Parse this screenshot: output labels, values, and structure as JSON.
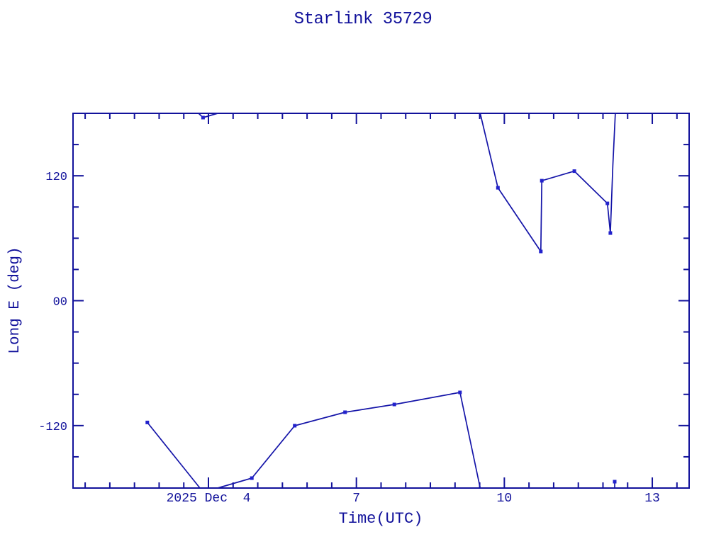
{
  "title": "Starlink 35729",
  "colors": {
    "axis": "#12129b",
    "text": "#12129b",
    "line": "#1414a8",
    "marker": "#2222cc"
  },
  "chart_data": {
    "type": "line",
    "title": "Starlink 35729",
    "xlabel": "Time(UTC)",
    "ylabel": "Long E (deg)",
    "x_axis_unit": "day of December 2025 (UTC)",
    "xlim": [
      1.254,
      13.747
    ],
    "ylim": [
      -180,
      180
    ],
    "grid": false,
    "legend": null,
    "marker_style": "filled-square",
    "x_major_ticks": [
      {
        "value": 4,
        "label": "2025 Dec  4"
      },
      {
        "value": 7,
        "label": "7"
      },
      {
        "value": 10,
        "label": "10"
      },
      {
        "value": 13,
        "label": "13"
      }
    ],
    "x_minor_step": 0.5,
    "y_major_ticks": [
      {
        "value": 120,
        "label": "120"
      },
      {
        "value": 0,
        "label": "00"
      },
      {
        "value": -120,
        "label": "-120"
      }
    ],
    "y_minor_step": 30,
    "points": [
      [
        2.76,
        -117.0
      ],
      [
        3.89,
        175.9
      ],
      [
        4.88,
        -170.5
      ],
      [
        5.75,
        -120.1
      ],
      [
        6.77,
        -107.2
      ],
      [
        7.77,
        -99.7
      ],
      [
        9.1,
        -88.1
      ],
      [
        9.87,
        108.5
      ],
      [
        10.74,
        47.3
      ],
      [
        10.76,
        115.3
      ],
      [
        11.42,
        124.5
      ],
      [
        12.09,
        93.5
      ],
      [
        12.15,
        65.0
      ],
      [
        12.238,
        -173.9
      ]
    ],
    "segments": [
      [
        [
          2.76,
          -117.0
        ],
        [
          3.827,
          -180
        ]
      ],
      [
        [
          3.8,
          180
        ],
        [
          3.89,
          175.9
        ],
        [
          4.187,
          180
        ]
      ],
      [
        [
          4.187,
          -180
        ],
        [
          4.88,
          -170.5
        ],
        [
          5.75,
          -120.1
        ],
        [
          6.77,
          -107.2
        ],
        [
          7.77,
          -99.7
        ],
        [
          9.1,
          -88.1
        ],
        [
          9.51,
          -180
        ]
      ],
      [
        [
          9.51,
          180
        ],
        [
          9.87,
          108.5
        ],
        [
          10.74,
          47.3
        ],
        [
          10.76,
          115.3
        ],
        [
          11.42,
          124.5
        ],
        [
          12.09,
          93.5
        ],
        [
          12.15,
          65.0
        ],
        [
          12.2,
          130.0
        ],
        [
          12.25,
          180
        ]
      ],
      [
        [
          12.238,
          -180
        ],
        [
          12.238,
          -173.9
        ]
      ]
    ]
  }
}
